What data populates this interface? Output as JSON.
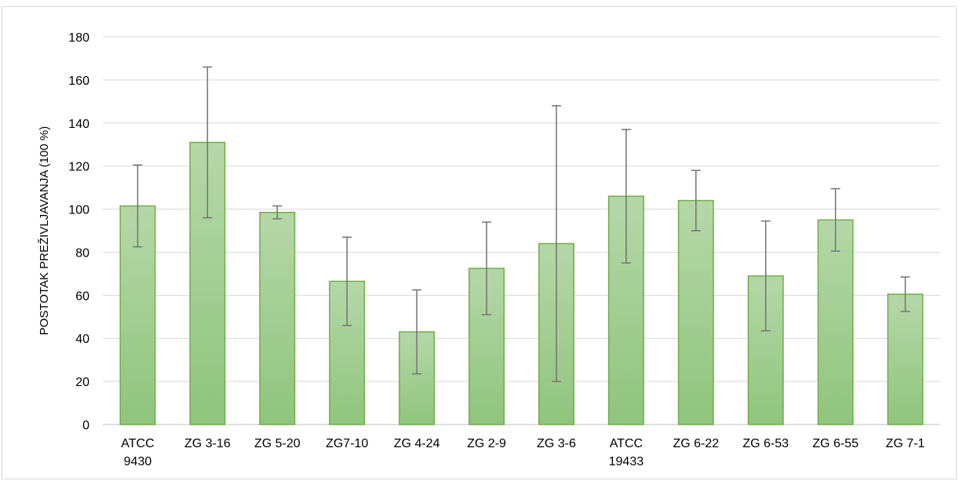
{
  "chart_data": {
    "type": "bar",
    "title": "",
    "xlabel": "",
    "ylabel": "POSTOTAK PREŽIVLJAVANJA (100 %)",
    "ylim": [
      0,
      180
    ],
    "y_ticks": [
      0,
      20,
      40,
      60,
      80,
      100,
      120,
      140,
      160,
      180
    ],
    "grid": true,
    "legend": "none",
    "categories": [
      [
        "ATCC",
        "9430"
      ],
      [
        "ZG 3-16"
      ],
      [
        "ZG 5-20"
      ],
      [
        "ZG7-10"
      ],
      [
        "ZG 4-24"
      ],
      [
        "ZG 2-9"
      ],
      [
        "ZG 3-6"
      ],
      [
        "ATCC",
        "19433"
      ],
      [
        "ZG 6-22"
      ],
      [
        "ZG 6-53"
      ],
      [
        "ZG 6-55"
      ],
      [
        "ZG 7-1"
      ]
    ],
    "values": [
      101.5,
      131,
      98.5,
      66.5,
      43,
      72.5,
      84,
      106,
      104,
      69,
      95,
      60.5
    ],
    "error": [
      19,
      35,
      3,
      20.5,
      19.5,
      21.5,
      64,
      31,
      14,
      25.5,
      14.5,
      8
    ],
    "colors": {
      "bar_fill_top": "#b5d7a8",
      "bar_fill_bottom": "#8fc57c",
      "bar_stroke": "#70ad47",
      "error_bar": "#737373",
      "grid": "#d9d9d9",
      "axis": "#bfbfbf"
    }
  }
}
